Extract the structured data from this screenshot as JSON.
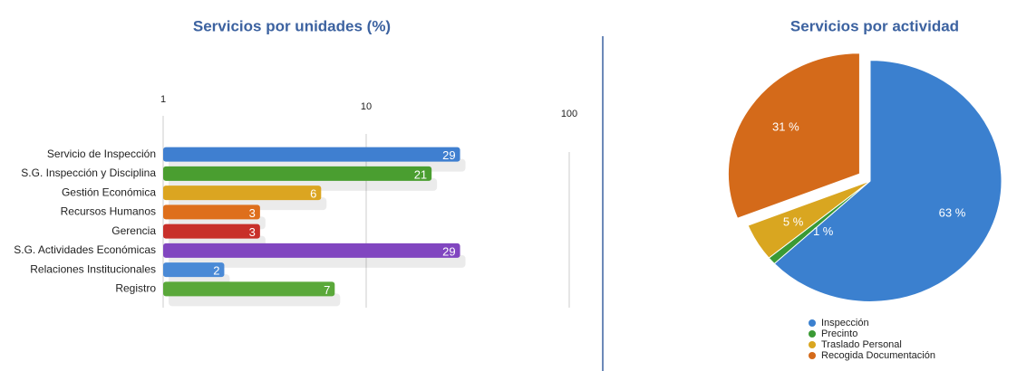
{
  "chart_data": [
    {
      "type": "bar",
      "title": "Servicios por unidades (%)",
      "categories": [
        "Servicio de Inspección",
        "S.G. Inspección y Disciplina",
        "Gestión Económica",
        "Recursos Humanos",
        "Gerencia",
        "S.G. Actividades Económicas",
        "Relaciones Institucionales",
        "Registro"
      ],
      "values": [
        29,
        21,
        6,
        3,
        3,
        29,
        2,
        7
      ],
      "colors": [
        "#3f7fd0",
        "#4a9e30",
        "#dba521",
        "#de6f1c",
        "#c8302a",
        "#8146c0",
        "#4a8ad6",
        "#5aa83a"
      ],
      "xlim": [
        1,
        100
      ],
      "xticks": [
        1,
        10,
        100
      ],
      "log_scale": true,
      "grid": true
    },
    {
      "type": "pie",
      "title": "Servicios por actividad",
      "categories": [
        "Inspección",
        "Precinto",
        "Traslado Personal",
        "Recogida Documentación"
      ],
      "values": [
        63,
        1,
        5,
        31
      ],
      "value_labels": [
        "63 %",
        "1 %",
        "5 %",
        "31 %"
      ],
      "colors": [
        "#3b80cf",
        "#3a9a35",
        "#d9a620",
        "#d46a1a"
      ],
      "legend": "bottom"
    }
  ]
}
